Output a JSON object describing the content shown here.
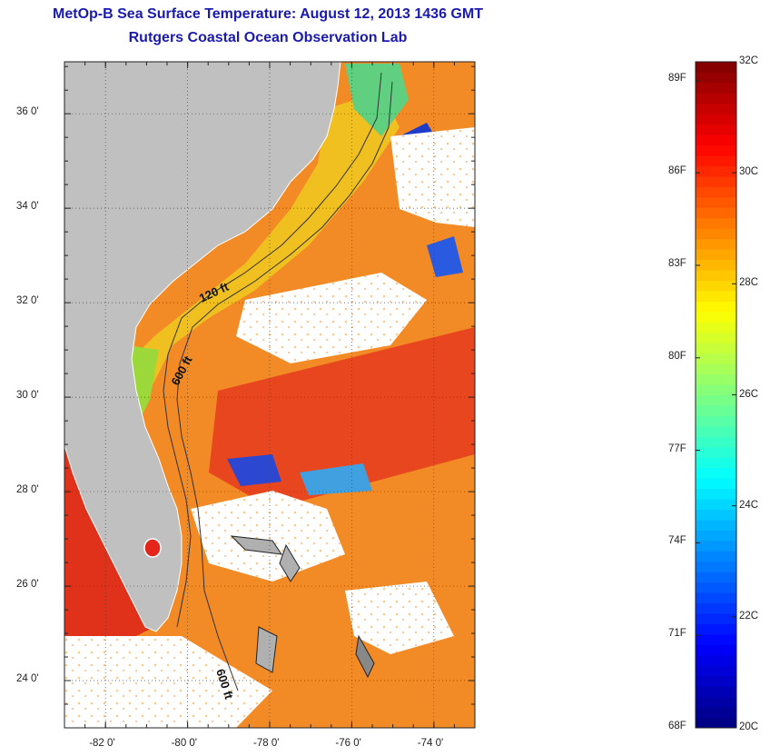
{
  "title": "MetOp-B Sea Surface Temperature:  August 12, 2013 1436 GMT",
  "subtitle": "Rutgers Coastal Ocean Observation Lab",
  "map": {
    "lat_labels": [
      "36 0'",
      "34 0'",
      "32 0'",
      "30 0'",
      "28 0'",
      "26 0'",
      "24 0'"
    ],
    "lat_values": [
      36,
      34,
      32,
      30,
      28,
      26,
      24
    ],
    "lon_labels": [
      "-82 0'",
      "-80 0'",
      "-78 0'",
      "-76 0'",
      "-74 0'"
    ],
    "lon_values": [
      -82,
      -80,
      -78,
      -76,
      -74
    ],
    "lat_range": [
      23,
      37.1
    ],
    "lon_range": [
      -83,
      -73
    ],
    "contour_labels": [
      "120 ft",
      "600 ft",
      "600 ft"
    ],
    "land_color": "#c0c0c0",
    "cloud_color": "#ffffff"
  },
  "colorbar": {
    "fahrenheit_labels": [
      "89F",
      "86F",
      "83F",
      "80F",
      "77F",
      "74F",
      "71F",
      "68F"
    ],
    "fahrenheit_values": [
      89,
      86,
      83,
      80,
      77,
      74,
      71,
      68
    ],
    "celsius_labels": [
      "32C",
      "30C",
      "28C",
      "26C",
      "24C",
      "22C",
      "20C"
    ],
    "celsius_values": [
      32,
      30,
      28,
      26,
      24,
      22,
      20
    ],
    "range_c": [
      20,
      32
    ],
    "colormap": "jet"
  }
}
